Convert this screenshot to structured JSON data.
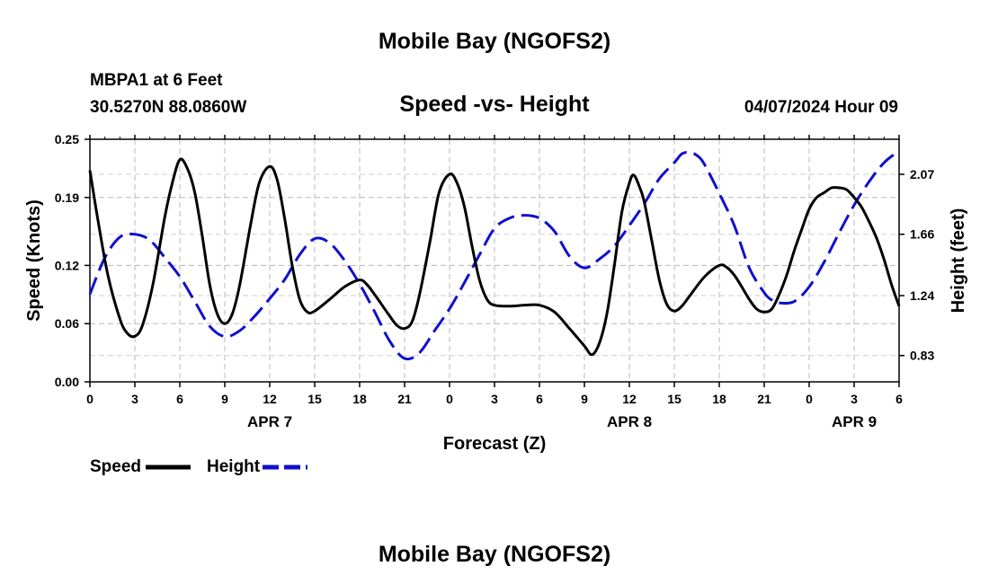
{
  "header": {
    "main_title": "Mobile Bay (NGOFS2)",
    "station_line": "MBPA1 at 6 Feet",
    "coords": "30.5270N  88.0860W",
    "subtitle": "Speed -vs- Height",
    "datetime": "04/07/2024 Hour 09",
    "footer_title": "Mobile Bay (NGOFS2)"
  },
  "legend": {
    "speed_label": "Speed",
    "height_label": "Height"
  },
  "chart_data": {
    "type": "line",
    "title": "Speed -vs- Height",
    "xlabel": "Forecast (Z)",
    "ylabel": "Speed (Knots)",
    "y2label": "Height (feet)",
    "x_range": [
      0,
      54
    ],
    "ylim": [
      0,
      0.25
    ],
    "y2lim": [
      0.65,
      2.31
    ],
    "x_ticks": [
      0,
      3,
      6,
      9,
      12,
      15,
      18,
      21,
      24,
      27,
      30,
      33,
      36,
      39,
      42,
      45,
      48,
      51,
      54
    ],
    "x_tick_labels": [
      "0",
      "3",
      "6",
      "9",
      "12",
      "15",
      "18",
      "21",
      "0",
      "3",
      "6",
      "9",
      "12",
      "15",
      "18",
      "21",
      "0",
      "3",
      "6"
    ],
    "y_ticks": [
      0.0,
      0.06,
      0.12,
      0.19,
      0.25
    ],
    "y_tick_labels": [
      "0.00",
      "0.06",
      "0.12",
      "0.19",
      "0.25"
    ],
    "y2_ticks": [
      0.83,
      1.24,
      1.66,
      2.07
    ],
    "y2_tick_labels": [
      "0.83",
      "1.24",
      "1.66",
      "2.07"
    ],
    "day_labels": [
      {
        "x": 12,
        "label": "APR 7"
      },
      {
        "x": 36,
        "label": "APR 8"
      },
      {
        "x": 51,
        "label": "APR 9"
      }
    ],
    "grid": true,
    "legend_position": "bottom-left",
    "series": [
      {
        "name": "Speed",
        "axis": "left",
        "color": "#000000",
        "style": "solid",
        "points": [
          [
            0,
            0.218
          ],
          [
            0.5,
            0.17
          ],
          [
            1.2,
            0.11
          ],
          [
            2,
            0.065
          ],
          [
            2.5,
            0.05
          ],
          [
            3,
            0.047
          ],
          [
            3.5,
            0.058
          ],
          [
            4.2,
            0.1
          ],
          [
            5,
            0.17
          ],
          [
            5.5,
            0.205
          ],
          [
            6,
            0.229
          ],
          [
            6.5,
            0.22
          ],
          [
            7,
            0.195
          ],
          [
            7.5,
            0.15
          ],
          [
            8,
            0.1
          ],
          [
            8.5,
            0.07
          ],
          [
            9,
            0.06
          ],
          [
            9.5,
            0.07
          ],
          [
            10,
            0.1
          ],
          [
            10.7,
            0.16
          ],
          [
            11.3,
            0.205
          ],
          [
            12,
            0.222
          ],
          [
            12.5,
            0.208
          ],
          [
            13,
            0.168
          ],
          [
            13.5,
            0.12
          ],
          [
            14,
            0.085
          ],
          [
            14.5,
            0.072
          ],
          [
            15,
            0.073
          ],
          [
            16,
            0.085
          ],
          [
            17,
            0.098
          ],
          [
            18,
            0.105
          ],
          [
            18.5,
            0.1
          ],
          [
            19,
            0.09
          ],
          [
            20,
            0.068
          ],
          [
            20.5,
            0.058
          ],
          [
            21,
            0.055
          ],
          [
            21.5,
            0.062
          ],
          [
            22,
            0.09
          ],
          [
            22.7,
            0.145
          ],
          [
            23.3,
            0.195
          ],
          [
            24,
            0.214
          ],
          [
            24.5,
            0.205
          ],
          [
            25,
            0.18
          ],
          [
            25.5,
            0.14
          ],
          [
            26,
            0.105
          ],
          [
            26.5,
            0.085
          ],
          [
            27,
            0.079
          ],
          [
            28,
            0.078
          ],
          [
            29,
            0.079
          ],
          [
            30,
            0.079
          ],
          [
            31,
            0.072
          ],
          [
            32,
            0.055
          ],
          [
            33,
            0.037
          ],
          [
            33.5,
            0.028
          ],
          [
            34,
            0.04
          ],
          [
            34.5,
            0.07
          ],
          [
            35,
            0.12
          ],
          [
            35.5,
            0.175
          ],
          [
            36,
            0.205
          ],
          [
            36.3,
            0.213
          ],
          [
            36.7,
            0.2
          ],
          [
            37,
            0.185
          ],
          [
            37.5,
            0.145
          ],
          [
            38,
            0.105
          ],
          [
            38.5,
            0.08
          ],
          [
            39,
            0.073
          ],
          [
            39.5,
            0.078
          ],
          [
            40,
            0.088
          ],
          [
            41,
            0.108
          ],
          [
            42,
            0.12
          ],
          [
            42.5,
            0.118
          ],
          [
            43,
            0.11
          ],
          [
            43.5,
            0.098
          ],
          [
            44,
            0.085
          ],
          [
            44.5,
            0.075
          ],
          [
            45,
            0.072
          ],
          [
            45.5,
            0.075
          ],
          [
            46,
            0.09
          ],
          [
            46.5,
            0.11
          ],
          [
            47,
            0.135
          ],
          [
            47.5,
            0.157
          ],
          [
            48,
            0.178
          ],
          [
            48.5,
            0.19
          ],
          [
            49,
            0.195
          ],
          [
            49.5,
            0.2
          ],
          [
            50,
            0.2
          ],
          [
            50.5,
            0.198
          ],
          [
            51,
            0.19
          ],
          [
            51.5,
            0.18
          ],
          [
            52,
            0.165
          ],
          [
            52.5,
            0.148
          ],
          [
            53,
            0.126
          ],
          [
            53.5,
            0.1
          ],
          [
            54,
            0.078
          ]
        ]
      },
      {
        "name": "Height",
        "axis": "right",
        "color": "#1010cc",
        "style": "dashed",
        "points": [
          [
            0,
            1.25
          ],
          [
            1,
            1.5
          ],
          [
            2,
            1.64
          ],
          [
            3,
            1.66
          ],
          [
            4,
            1.62
          ],
          [
            5,
            1.5
          ],
          [
            6,
            1.37
          ],
          [
            7,
            1.2
          ],
          [
            8,
            1.03
          ],
          [
            9,
            0.96
          ],
          [
            10,
            1.0
          ],
          [
            11,
            1.1
          ],
          [
            12,
            1.22
          ],
          [
            13,
            1.35
          ],
          [
            14,
            1.52
          ],
          [
            15,
            1.63
          ],
          [
            16,
            1.6
          ],
          [
            17,
            1.48
          ],
          [
            18,
            1.32
          ],
          [
            19,
            1.13
          ],
          [
            20,
            0.93
          ],
          [
            21,
            0.81
          ],
          [
            22,
            0.85
          ],
          [
            23,
            1.0
          ],
          [
            24,
            1.15
          ],
          [
            25,
            1.33
          ],
          [
            26,
            1.52
          ],
          [
            27,
            1.7
          ],
          [
            28,
            1.77
          ],
          [
            29,
            1.79
          ],
          [
            30,
            1.77
          ],
          [
            31,
            1.68
          ],
          [
            32,
            1.51
          ],
          [
            33,
            1.43
          ],
          [
            34,
            1.49
          ],
          [
            35,
            1.58
          ],
          [
            36,
            1.72
          ],
          [
            37,
            1.87
          ],
          [
            38,
            2.04
          ],
          [
            39,
            2.15
          ],
          [
            39.5,
            2.21
          ],
          [
            40,
            2.22
          ],
          [
            40.5,
            2.2
          ],
          [
            41,
            2.14
          ],
          [
            42,
            1.94
          ],
          [
            43,
            1.72
          ],
          [
            44,
            1.43
          ],
          [
            45,
            1.26
          ],
          [
            45.5,
            1.21
          ],
          [
            46,
            1.19
          ],
          [
            47,
            1.2
          ],
          [
            48,
            1.3
          ],
          [
            49,
            1.47
          ],
          [
            50,
            1.67
          ],
          [
            51,
            1.86
          ],
          [
            52,
            2.02
          ],
          [
            53,
            2.15
          ],
          [
            54,
            2.23
          ]
        ]
      }
    ]
  }
}
